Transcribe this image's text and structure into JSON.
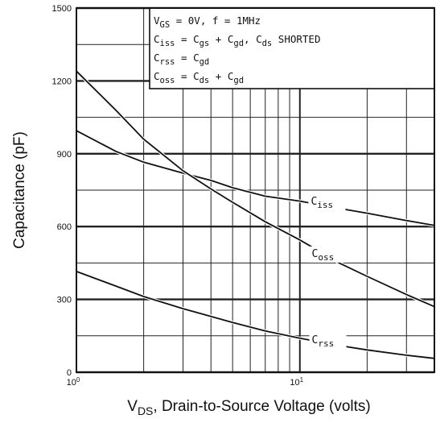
{
  "chart_data": {
    "type": "line",
    "x_scale": "log",
    "xlim": [
      1,
      40
    ],
    "ylim": [
      0,
      1500
    ],
    "y_ticks": [
      "0",
      "300",
      "600",
      "900",
      "1200",
      "1500"
    ],
    "x_ticks": [
      {
        "base": "10",
        "exp": "0"
      },
      {
        "base": "10",
        "exp": "1"
      }
    ],
    "ylabel": "Capacitance (pF)",
    "xlabel": {
      "prefix": "V",
      "sub": "DS",
      "rest": ", Drain-to-Source Voltage (volts)"
    },
    "grid": true,
    "legend_box": {
      "lines": [
        [
          {
            "t": "V"
          },
          {
            "t": "GS",
            "sub": true
          },
          {
            "t": " = 0V,  f = 1MHz"
          }
        ],
        [
          {
            "t": "C"
          },
          {
            "t": "iss",
            "sub": true
          },
          {
            "t": " = C"
          },
          {
            "t": "gs",
            "sub": true
          },
          {
            "t": " + C"
          },
          {
            "t": "gd",
            "sub": true
          },
          {
            "t": ",  C"
          },
          {
            "t": "ds",
            "sub": true
          },
          {
            "t": " SHORTED"
          }
        ],
        [
          {
            "t": "C"
          },
          {
            "t": "rss",
            "sub": true
          },
          {
            "t": " = C"
          },
          {
            "t": "gd",
            "sub": true
          }
        ],
        [
          {
            "t": "C"
          },
          {
            "t": "oss",
            "sub": true
          },
          {
            "t": " = C"
          },
          {
            "t": "ds",
            "sub": true
          },
          {
            "t": " + C"
          },
          {
            "t": "gd",
            "sub": true
          }
        ]
      ]
    },
    "series": [
      {
        "name": "Ciss",
        "label_base": "C",
        "label_sub": "iss",
        "label_at": [
          11.2,
          690
        ],
        "x": [
          1,
          1.5,
          2,
          3,
          4,
          5,
          7,
          10,
          15,
          20,
          30,
          40
        ],
        "y": [
          995,
          910,
          865,
          820,
          790,
          760,
          725,
          705,
          675,
          655,
          625,
          605
        ]
      },
      {
        "name": "Coss",
        "label_base": "C",
        "label_sub": "oss",
        "label_at": [
          11.3,
          475
        ],
        "x": [
          1,
          1.5,
          2,
          3,
          4,
          5,
          7,
          10,
          15,
          20,
          30,
          40
        ],
        "y": [
          1240,
          1080,
          960,
          830,
          755,
          700,
          620,
          545,
          450,
          395,
          320,
          270
        ]
      },
      {
        "name": "Crss",
        "label_base": "C",
        "label_sub": "rss",
        "label_at": [
          11.3,
          120
        ],
        "x": [
          1,
          1.5,
          2,
          3,
          4,
          5,
          7,
          10,
          15,
          20,
          30,
          40
        ],
        "y": [
          415,
          355,
          312,
          262,
          230,
          205,
          170,
          140,
          110,
          92,
          70,
          57
        ]
      }
    ]
  }
}
